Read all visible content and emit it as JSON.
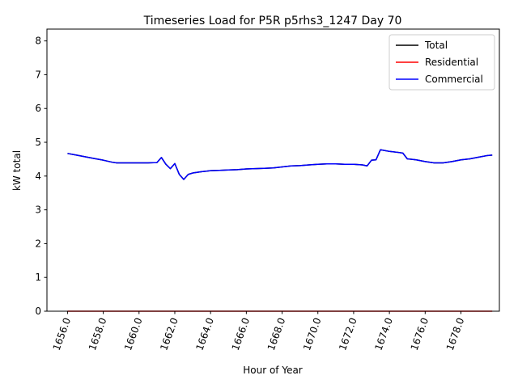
{
  "chart_data": {
    "type": "line",
    "title": "Timeseries Load for P5R p5rhs3_1247  Day 70",
    "xlabel": "Hour of Year",
    "ylabel": "kW total",
    "xlim": [
      1654.85,
      1680.15
    ],
    "ylim": [
      0,
      8.35
    ],
    "xticks": [
      1656,
      1658,
      1660,
      1662,
      1664,
      1666,
      1668,
      1670,
      1672,
      1674,
      1676,
      1678
    ],
    "xtick_labels": [
      "1656.0",
      "1658.0",
      "1660.0",
      "1662.0",
      "1664.0",
      "1666.0",
      "1668.0",
      "1670.0",
      "1672.0",
      "1674.0",
      "1676.0",
      "1678.0"
    ],
    "yticks": [
      0,
      1,
      2,
      3,
      4,
      5,
      6,
      7,
      8
    ],
    "ytick_labels": [
      "0",
      "1",
      "2",
      "3",
      "4",
      "5",
      "6",
      "7",
      "8"
    ],
    "legend_position": "top-right",
    "x": [
      1656.0,
      1656.5,
      1657.0,
      1657.5,
      1658.0,
      1658.5,
      1658.75,
      1659.0,
      1659.5,
      1660.0,
      1660.5,
      1661.0,
      1661.25,
      1661.5,
      1661.75,
      1662.0,
      1662.25,
      1662.5,
      1662.75,
      1663.0,
      1663.5,
      1664.0,
      1664.5,
      1665.0,
      1665.5,
      1666.0,
      1666.5,
      1667.0,
      1667.5,
      1668.0,
      1668.5,
      1669.0,
      1669.5,
      1670.0,
      1670.5,
      1671.0,
      1671.5,
      1672.0,
      1672.5,
      1672.75,
      1673.0,
      1673.25,
      1673.5,
      1674.0,
      1674.5,
      1674.75,
      1675.0,
      1675.5,
      1676.0,
      1676.5,
      1677.0,
      1677.5,
      1678.0,
      1678.5,
      1679.0,
      1679.5,
      1679.75
    ],
    "series": [
      {
        "name": "Total",
        "color": "#000000",
        "values": [
          4.67,
          4.62,
          4.57,
          4.52,
          4.47,
          4.41,
          4.39,
          4.39,
          4.39,
          4.39,
          4.39,
          4.4,
          4.55,
          4.35,
          4.22,
          4.37,
          4.05,
          3.9,
          4.05,
          4.09,
          4.13,
          4.16,
          4.17,
          4.18,
          4.19,
          4.21,
          4.22,
          4.23,
          4.24,
          4.27,
          4.3,
          4.31,
          4.33,
          4.35,
          4.36,
          4.36,
          4.35,
          4.35,
          4.33,
          4.3,
          4.47,
          4.48,
          4.78,
          4.73,
          4.7,
          4.68,
          4.51,
          4.48,
          4.43,
          4.39,
          4.39,
          4.43,
          4.48,
          4.51,
          4.56,
          4.61,
          4.62
        ]
      },
      {
        "name": "Residential",
        "color": "#ff0000",
        "values": [
          0,
          0,
          0,
          0,
          0,
          0,
          0,
          0,
          0,
          0,
          0,
          0,
          0,
          0,
          0,
          0,
          0,
          0,
          0,
          0,
          0,
          0,
          0,
          0,
          0,
          0,
          0,
          0,
          0,
          0,
          0,
          0,
          0,
          0,
          0,
          0,
          0,
          0,
          0,
          0,
          0,
          0,
          0,
          0,
          0,
          0,
          0,
          0,
          0,
          0,
          0,
          0,
          0,
          0,
          0,
          0,
          0
        ]
      },
      {
        "name": "Commercial",
        "color": "#0000ff",
        "values": [
          4.67,
          4.62,
          4.57,
          4.52,
          4.47,
          4.41,
          4.39,
          4.39,
          4.39,
          4.39,
          4.39,
          4.4,
          4.55,
          4.35,
          4.22,
          4.37,
          4.05,
          3.9,
          4.05,
          4.09,
          4.13,
          4.16,
          4.17,
          4.18,
          4.19,
          4.21,
          4.22,
          4.23,
          4.24,
          4.27,
          4.3,
          4.31,
          4.33,
          4.35,
          4.36,
          4.36,
          4.35,
          4.35,
          4.33,
          4.3,
          4.47,
          4.48,
          4.78,
          4.73,
          4.7,
          4.68,
          4.51,
          4.48,
          4.43,
          4.39,
          4.39,
          4.43,
          4.48,
          4.51,
          4.56,
          4.61,
          4.62
        ]
      }
    ]
  }
}
